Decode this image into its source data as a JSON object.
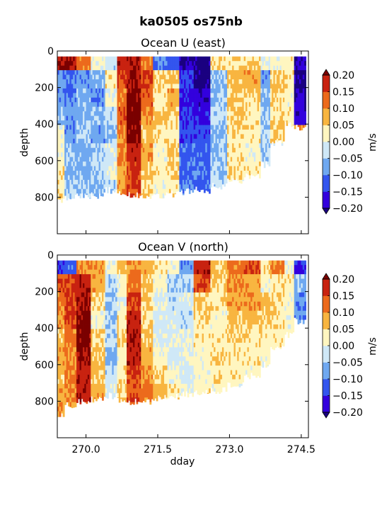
{
  "figure": {
    "suptitle": "ka0505 os75nb"
  },
  "chart_data": [
    {
      "type": "heatmap",
      "title": "Ocean U (east)",
      "xlabel": "",
      "ylabel": "depth",
      "x_ticks": [
        270.0,
        271.5,
        273.0,
        274.5
      ],
      "x_tick_labels": [],
      "xlim": [
        269.4,
        274.65
      ],
      "y_ticks": [
        0,
        200,
        400,
        600,
        800
      ],
      "y_tick_labels": [
        "0",
        "200",
        "400",
        "600",
        "800"
      ],
      "ylim": [
        0,
        1000
      ],
      "y_inverted": true,
      "colorbar": {
        "label": "m/s",
        "ticks": [
          "0.20",
          "0.15",
          "0.10",
          "0.05",
          "0.00",
          "−0.05",
          "−0.10",
          "−0.15",
          "−0.20"
        ],
        "levels": [
          -0.2,
          -0.15,
          -0.1,
          -0.05,
          0.0,
          0.05,
          0.1,
          0.15,
          0.2
        ],
        "colors": [
          "#3300dd",
          "#3355ee",
          "#6fa8f0",
          "#cfe8f7",
          "#fff6c0",
          "#f8b540",
          "#ec6a1c",
          "#c82210"
        ],
        "extend": "both",
        "over_color": "#7a0000",
        "under_color": "#1a0080"
      },
      "columns": [
        {
          "x0": 269.4,
          "x1": 269.55,
          "top": 30,
          "bottom": 820,
          "v": [
            0.2,
            -0.08,
            -0.08,
            -0.06,
            0.02,
            0.02,
            0.03,
            0.04,
            0.04,
            0.04,
            0.0
          ]
        },
        {
          "x0": 269.55,
          "x1": 269.8,
          "top": 30,
          "bottom": 800,
          "v": [
            0.2,
            -0.1,
            -0.1,
            -0.08,
            -0.08,
            -0.06,
            -0.06,
            -0.04,
            -0.04,
            -0.03,
            0.0
          ]
        },
        {
          "x0": 269.8,
          "x1": 270.1,
          "top": 30,
          "bottom": 790,
          "v": [
            0.12,
            -0.08,
            -0.07,
            -0.06,
            -0.05,
            -0.06,
            -0.07,
            -0.05,
            -0.06,
            -0.04,
            0.0
          ]
        },
        {
          "x0": 270.1,
          "x1": 270.4,
          "top": 30,
          "bottom": 790,
          "v": [
            0.0,
            -0.07,
            -0.1,
            -0.06,
            -0.08,
            -0.04,
            -0.04,
            -0.06,
            -0.03,
            -0.02,
            0.0
          ]
        },
        {
          "x0": 270.4,
          "x1": 270.65,
          "top": 30,
          "bottom": 760,
          "v": [
            -0.03,
            0.03,
            0.01,
            -0.03,
            -0.05,
            -0.02,
            0.0,
            -0.04,
            -0.02,
            -0.03,
            0.0
          ]
        },
        {
          "x0": 270.65,
          "x1": 270.85,
          "top": 30,
          "bottom": 780,
          "v": [
            0.18,
            0.15,
            0.12,
            0.14,
            0.1,
            0.12,
            0.09,
            0.1,
            0.08,
            0.06,
            0.0
          ]
        },
        {
          "x0": 270.85,
          "x1": 271.15,
          "top": 30,
          "bottom": 790,
          "v": [
            0.2,
            0.2,
            0.22,
            0.22,
            0.2,
            0.18,
            0.16,
            0.15,
            0.12,
            0.1,
            0.0
          ]
        },
        {
          "x0": 271.15,
          "x1": 271.4,
          "top": 30,
          "bottom": 800,
          "v": [
            0.12,
            0.16,
            0.14,
            0.1,
            0.07,
            0.09,
            0.06,
            0.05,
            0.03,
            0.03,
            0.0
          ]
        },
        {
          "x0": 271.4,
          "x1": 271.7,
          "top": 30,
          "bottom": 790,
          "v": [
            -0.1,
            0.05,
            0.03,
            0.06,
            0.04,
            0.02,
            0.03,
            0.02,
            0.04,
            0.02,
            0.0
          ]
        },
        {
          "x0": 271.7,
          "x1": 271.95,
          "top": 30,
          "bottom": 780,
          "v": [
            -0.12,
            0.06,
            0.08,
            0.05,
            0.03,
            0.05,
            0.06,
            0.03,
            0.02,
            0.02,
            0.0
          ]
        },
        {
          "x0": 271.95,
          "x1": 272.25,
          "top": 30,
          "bottom": 770,
          "v": [
            -0.2,
            -0.14,
            -0.16,
            -0.15,
            -0.14,
            -0.12,
            -0.12,
            -0.1,
            -0.1,
            -0.08,
            0.0
          ]
        },
        {
          "x0": 272.25,
          "x1": 272.6,
          "top": 30,
          "bottom": 760,
          "v": [
            -0.22,
            -0.22,
            -0.18,
            -0.17,
            -0.13,
            -0.12,
            -0.1,
            -0.12,
            -0.08,
            -0.06,
            0.0
          ]
        },
        {
          "x0": 272.6,
          "x1": 272.95,
          "top": 30,
          "bottom": 740,
          "v": [
            0.04,
            -0.06,
            -0.06,
            -0.03,
            -0.06,
            -0.05,
            -0.04,
            -0.03,
            -0.04,
            -0.02,
            0.0
          ]
        },
        {
          "x0": 272.95,
          "x1": 273.3,
          "top": 30,
          "bottom": 710,
          "v": [
            0.05,
            0.07,
            0.06,
            0.05,
            0.04,
            0.03,
            0.04,
            0.02,
            0.02,
            0.01,
            0.0
          ]
        },
        {
          "x0": 273.3,
          "x1": 273.65,
          "top": 30,
          "bottom": 680,
          "v": [
            0.05,
            0.08,
            0.05,
            0.03,
            0.04,
            0.02,
            0.03,
            0.01,
            0.02,
            0.0,
            0.0
          ]
        },
        {
          "x0": 273.65,
          "x1": 273.85,
          "top": 30,
          "bottom": 620,
          "v": [
            0.0,
            -0.08,
            -0.06,
            -0.05,
            -0.04,
            -0.05,
            -0.03,
            -0.02,
            0.0,
            0.0,
            0.0
          ]
        },
        {
          "x0": 273.85,
          "x1": 274.15,
          "top": 30,
          "bottom": 500,
          "v": [
            0.02,
            0.06,
            0.05,
            0.04,
            0.06,
            0.02,
            0.04,
            0.02,
            0.0,
            0.0,
            0.0
          ]
        },
        {
          "x0": 274.15,
          "x1": 274.35,
          "top": 30,
          "bottom": 400,
          "v": [
            0.03,
            0.04,
            0.02,
            0.03,
            0.05,
            0.04,
            0.0,
            0.0,
            0.0,
            0.0,
            0.0
          ]
        },
        {
          "x0": 274.35,
          "x1": 274.6,
          "top": 30,
          "bottom": 420,
          "v": [
            -0.2,
            -0.22,
            -0.2,
            -0.18,
            0.1,
            0.05,
            0.0,
            0.0,
            0.0,
            0.0,
            0.0
          ]
        }
      ]
    },
    {
      "type": "heatmap",
      "title": "Ocean V (north)",
      "xlabel": "dday",
      "ylabel": "depth",
      "x_ticks": [
        270.0,
        271.5,
        273.0,
        274.5
      ],
      "x_tick_labels": [
        "270.0",
        "271.5",
        "273.0",
        "274.5"
      ],
      "xlim": [
        269.4,
        274.65
      ],
      "y_ticks": [
        0,
        200,
        400,
        600,
        800
      ],
      "y_tick_labels": [
        "0",
        "200",
        "400",
        "600",
        "800"
      ],
      "ylim": [
        0,
        1000
      ],
      "y_inverted": true,
      "colorbar": {
        "label": "m/s",
        "ticks": [
          "0.20",
          "0.15",
          "0.10",
          "0.05",
          "0.00",
          "−0.05",
          "−0.10",
          "−0.15",
          "−0.20"
        ],
        "levels": [
          -0.2,
          -0.15,
          -0.1,
          -0.05,
          0.0,
          0.05,
          0.1,
          0.15,
          0.2
        ],
        "colors": [
          "#3300dd",
          "#3355ee",
          "#6fa8f0",
          "#cfe8f7",
          "#fff6c0",
          "#f8b540",
          "#ec6a1c",
          "#c82210"
        ],
        "extend": "both",
        "over_color": "#7a0000",
        "under_color": "#1a0080"
      },
      "columns": [
        {
          "x0": 269.4,
          "x1": 269.55,
          "top": 30,
          "bottom": 880,
          "v": [
            -0.15,
            0.14,
            0.12,
            0.1,
            0.06,
            0.08,
            0.07,
            0.08,
            0.09,
            0.07,
            0.0
          ]
        },
        {
          "x0": 269.55,
          "x1": 269.8,
          "top": 30,
          "bottom": 820,
          "v": [
            -0.12,
            0.16,
            0.15,
            0.16,
            0.12,
            0.1,
            0.12,
            0.1,
            0.08,
            0.09,
            0.0
          ]
        },
        {
          "x0": 269.8,
          "x1": 270.1,
          "top": 30,
          "bottom": 800,
          "v": [
            0.1,
            0.18,
            0.2,
            0.22,
            0.22,
            0.2,
            0.18,
            0.18,
            0.14,
            0.12,
            0.0
          ]
        },
        {
          "x0": 270.1,
          "x1": 270.4,
          "top": 30,
          "bottom": 790,
          "v": [
            0.1,
            0.08,
            0.05,
            0.02,
            0.04,
            0.06,
            0.06,
            0.08,
            0.06,
            0.05,
            0.0
          ]
        },
        {
          "x0": 270.4,
          "x1": 270.65,
          "top": 30,
          "bottom": 770,
          "v": [
            0.02,
            -0.04,
            -0.06,
            -0.05,
            -0.04,
            -0.06,
            -0.03,
            -0.02,
            -0.04,
            -0.03,
            0.0
          ]
        },
        {
          "x0": 270.65,
          "x1": 270.85,
          "top": 30,
          "bottom": 790,
          "v": [
            0.06,
            0.02,
            0.0,
            0.03,
            0.05,
            0.02,
            0.04,
            0.06,
            0.08,
            0.06,
            0.0
          ]
        },
        {
          "x0": 270.85,
          "x1": 271.15,
          "top": 30,
          "bottom": 800,
          "v": [
            0.1,
            0.12,
            0.16,
            0.18,
            0.2,
            0.18,
            0.16,
            0.14,
            0.12,
            0.1,
            0.0
          ]
        },
        {
          "x0": 271.15,
          "x1": 271.4,
          "top": 30,
          "bottom": 800,
          "v": [
            0.08,
            0.06,
            0.05,
            0.04,
            0.06,
            0.08,
            0.1,
            0.12,
            0.1,
            0.08,
            0.0
          ]
        },
        {
          "x0": 271.4,
          "x1": 271.7,
          "top": 30,
          "bottom": 780,
          "v": [
            0.04,
            0.02,
            0.0,
            -0.02,
            -0.01,
            0.02,
            0.05,
            0.07,
            0.06,
            0.04,
            0.0
          ]
        },
        {
          "x0": 271.7,
          "x1": 271.95,
          "top": 30,
          "bottom": 770,
          "v": [
            0.02,
            -0.04,
            -0.03,
            -0.02,
            -0.01,
            -0.02,
            0.01,
            0.03,
            0.03,
            0.02,
            0.0
          ]
        },
        {
          "x0": 271.95,
          "x1": 272.25,
          "top": 30,
          "bottom": 760,
          "v": [
            -0.08,
            -0.04,
            -0.02,
            -0.03,
            -0.01,
            0.0,
            -0.02,
            0.0,
            0.02,
            0.02,
            0.0
          ]
        },
        {
          "x0": 272.25,
          "x1": 272.6,
          "top": 30,
          "bottom": 750,
          "v": [
            0.18,
            0.14,
            0.06,
            0.04,
            0.03,
            0.02,
            0.02,
            0.03,
            0.02,
            0.01,
            0.0
          ]
        },
        {
          "x0": 272.6,
          "x1": 272.95,
          "top": 30,
          "bottom": 740,
          "v": [
            0.06,
            0.05,
            0.04,
            0.02,
            0.03,
            0.04,
            0.03,
            0.02,
            0.02,
            0.02,
            0.0
          ]
        },
        {
          "x0": 272.95,
          "x1": 273.3,
          "top": 30,
          "bottom": 710,
          "v": [
            0.12,
            0.1,
            0.08,
            0.06,
            0.05,
            0.04,
            0.03,
            0.02,
            0.01,
            0.0,
            0.0
          ]
        },
        {
          "x0": 273.3,
          "x1": 273.65,
          "top": 30,
          "bottom": 660,
          "v": [
            0.14,
            0.08,
            0.1,
            0.06,
            0.04,
            0.03,
            0.02,
            0.0,
            0.0,
            0.0,
            0.0
          ]
        },
        {
          "x0": 273.65,
          "x1": 273.85,
          "top": 30,
          "bottom": 600,
          "v": [
            0.04,
            0.02,
            0.06,
            0.05,
            0.03,
            0.02,
            0.0,
            0.0,
            0.0,
            0.0,
            0.0
          ]
        },
        {
          "x0": 273.85,
          "x1": 274.15,
          "top": 30,
          "bottom": 500,
          "v": [
            0.1,
            0.04,
            0.05,
            0.04,
            0.03,
            0.02,
            0.0,
            0.0,
            0.0,
            0.0,
            0.0
          ]
        },
        {
          "x0": 274.15,
          "x1": 274.35,
          "top": 30,
          "bottom": 440,
          "v": [
            0.02,
            0.03,
            0.02,
            0.01,
            0.02,
            0.0,
            0.0,
            0.0,
            0.0,
            0.0,
            0.0
          ]
        },
        {
          "x0": 274.35,
          "x1": 274.6,
          "top": 30,
          "bottom": 360,
          "v": [
            -0.15,
            -0.06,
            -0.1,
            -0.08,
            0.0,
            0.0,
            0.0,
            0.0,
            0.0,
            0.0,
            0.0
          ]
        }
      ]
    }
  ]
}
